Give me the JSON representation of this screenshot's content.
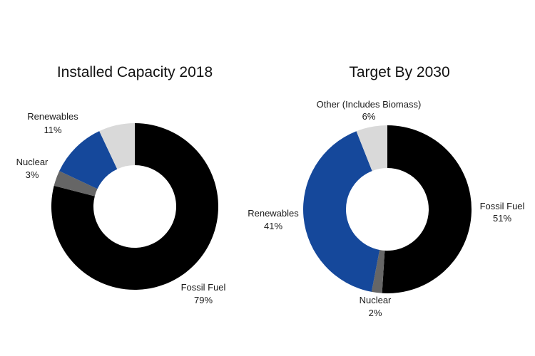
{
  "chart_data": [
    {
      "type": "pie",
      "variant": "donut",
      "title": "Installed Capacity 2018",
      "slices": [
        {
          "name": "Fossil Fuel",
          "value": 79,
          "label": "79%",
          "color": "#000000",
          "show_label": true
        },
        {
          "name": "Nuclear",
          "value": 3,
          "label": "3%",
          "color": "#666666",
          "show_label": true
        },
        {
          "name": "Renewables",
          "value": 11,
          "label": "11%",
          "color": "#15489b",
          "show_label": true
        },
        {
          "name": "Other",
          "value": 7,
          "label": "",
          "color": "#d9d9d9",
          "show_label": false
        }
      ],
      "units": "%"
    },
    {
      "type": "pie",
      "variant": "donut",
      "title": "Target By 2030",
      "slices": [
        {
          "name": "Fossil Fuel",
          "value": 51,
          "label": "51%",
          "color": "#000000",
          "show_label": true
        },
        {
          "name": "Nuclear",
          "value": 2,
          "label": "2%",
          "color": "#666666",
          "show_label": true
        },
        {
          "name": "Renewables",
          "value": 41,
          "label": "41%",
          "color": "#15489b",
          "show_label": true
        },
        {
          "name": "Other (Includes Biomass)",
          "value": 6,
          "label": "6%",
          "color": "#d9d9d9",
          "show_label": true
        }
      ],
      "units": "%"
    }
  ]
}
